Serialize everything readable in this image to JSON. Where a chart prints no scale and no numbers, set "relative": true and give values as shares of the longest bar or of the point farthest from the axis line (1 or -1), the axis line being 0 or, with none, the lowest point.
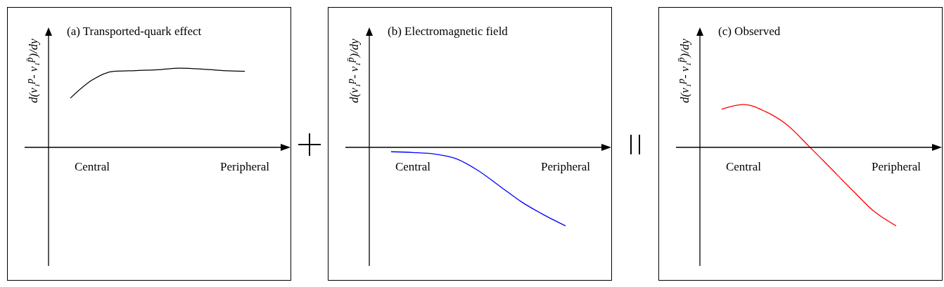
{
  "chart_data": [
    {
      "type": "line",
      "title": "(a) Transported-quark effect",
      "ylabel": "d(v₁$^{p}$- v₁$^{p̄}$)/dy",
      "relative": true,
      "categories": [
        null,
        null,
        "Central",
        null,
        null,
        null,
        null,
        null,
        null,
        "Peripheral",
        null,
        null
      ],
      "series": [
        {
          "color": "#000000",
          "values": [
            null,
            0.62,
            0.85,
            0.96,
            0.97,
            0.98,
            1,
            0.99,
            0.97,
            0.96,
            null,
            null
          ]
        }
      ]
    },
    {
      "type": "line",
      "title": "(b) Electromagnetic field",
      "ylabel": "d(v₁$^{p}$- v₁$^{p̄}$)/dy",
      "relative": true,
      "categories": [
        null,
        null,
        "Central",
        null,
        null,
        null,
        null,
        null,
        null,
        "Peripheral",
        null,
        null
      ],
      "series": [
        {
          "color": "#0000ff",
          "values": [
            null,
            -0.06,
            -0.07,
            -0.09,
            -0.15,
            -0.3,
            -0.5,
            -0.7,
            -0.86,
            -1,
            null,
            null
          ]
        }
      ]
    },
    {
      "type": "line",
      "title": "(c) Observed",
      "ylabel": "d(v₁$^{p}$- v₁$^{p̄}$)/dy",
      "relative": true,
      "categories": [
        null,
        null,
        "Central",
        null,
        null,
        null,
        null,
        null,
        null,
        "Peripheral",
        null,
        null
      ],
      "series": [
        {
          "color": "#ff0000",
          "values": [
            null,
            0.48,
            0.54,
            0.45,
            0.28,
            0.01,
            -0.27,
            -0.55,
            -0.82,
            -1,
            null,
            null
          ]
        }
      ]
    }
  ]
}
